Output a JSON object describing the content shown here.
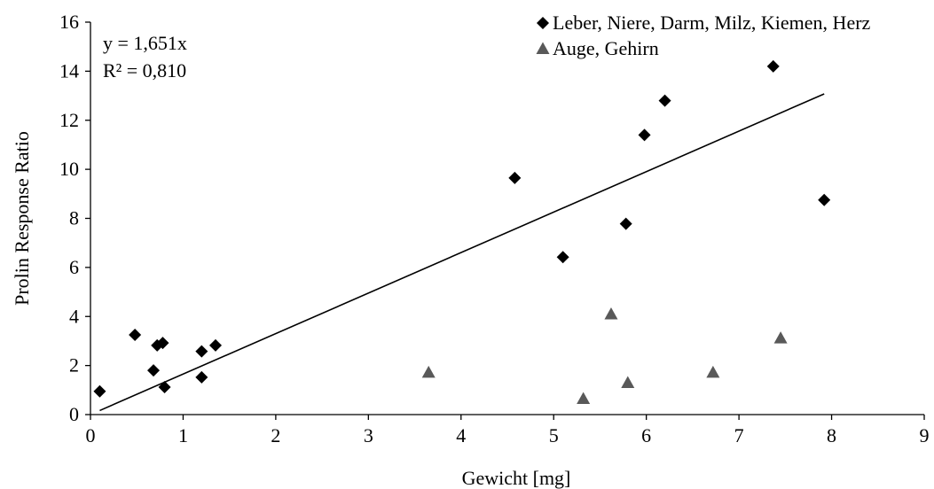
{
  "chart_data": {
    "type": "scatter",
    "xlabel": "Gewicht [mg]",
    "ylabel": "Prolin Response Ratio",
    "xlim": [
      0,
      9
    ],
    "ylim": [
      0,
      16
    ],
    "x_ticks": [
      "0",
      "1",
      "2",
      "3",
      "4",
      "5",
      "6",
      "7",
      "8",
      "9"
    ],
    "y_ticks": [
      "0",
      "2",
      "4",
      "6",
      "8",
      "10",
      "12",
      "14",
      "16"
    ],
    "grid": false,
    "legend_position": "top-right",
    "series": [
      {
        "name": "Leber, Niere, Darm, Milz, Kiemen, Herz",
        "marker": "diamond",
        "color": "#000000",
        "points": [
          [
            0.1,
            0.95
          ],
          [
            0.48,
            3.25
          ],
          [
            0.68,
            1.8
          ],
          [
            0.72,
            2.82
          ],
          [
            0.78,
            2.92
          ],
          [
            0.8,
            1.12
          ],
          [
            1.2,
            1.52
          ],
          [
            1.2,
            2.58
          ],
          [
            1.35,
            2.82
          ],
          [
            4.58,
            9.65
          ],
          [
            5.1,
            6.42
          ],
          [
            5.78,
            7.78
          ],
          [
            5.98,
            11.4
          ],
          [
            6.2,
            12.8
          ],
          [
            7.37,
            14.2
          ],
          [
            7.92,
            8.75
          ]
        ]
      },
      {
        "name": "Auge, Gehirn",
        "marker": "triangle",
        "color": "#595959",
        "points": [
          [
            3.65,
            1.72
          ],
          [
            5.32,
            0.65
          ],
          [
            5.62,
            4.1
          ],
          [
            5.8,
            1.3
          ],
          [
            6.72,
            1.72
          ],
          [
            7.45,
            3.12
          ]
        ]
      }
    ],
    "trendline": {
      "slope": 1.651,
      "x_range": [
        0.1,
        7.92
      ],
      "color": "#000000",
      "equation_label": "y = 1,651x",
      "r2_label": "R² = 0,810"
    }
  }
}
